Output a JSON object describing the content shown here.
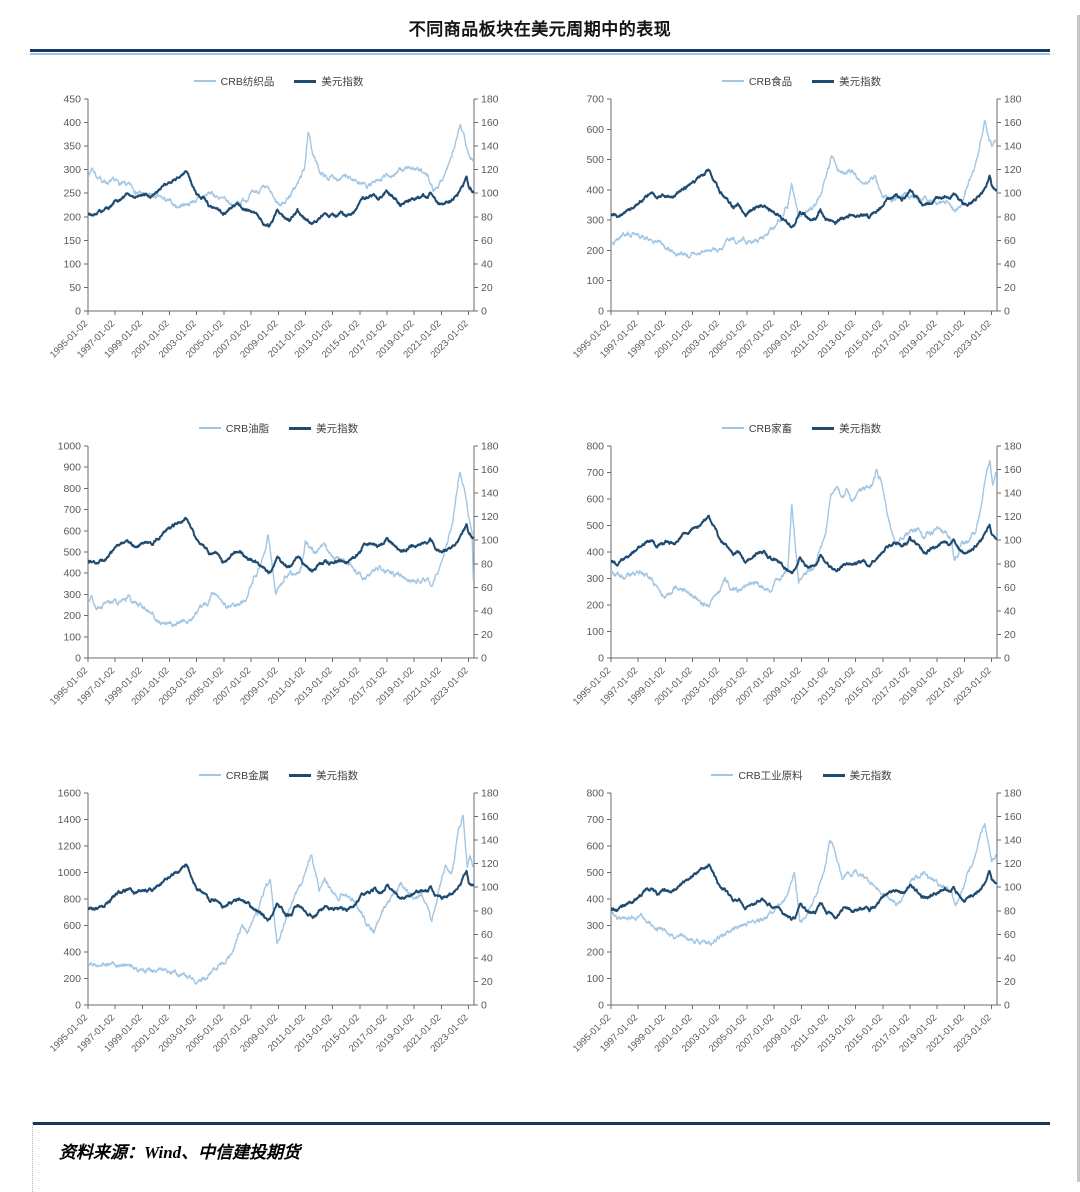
{
  "page": {
    "title": "不同商品板块在美元周期中的表现",
    "source_label": "资料来源：Wind、中信建投期货"
  },
  "colors": {
    "series_light": "#a3c6e3",
    "series_dark": "#1f4b71",
    "rule_dark": "#17365d",
    "rule_light": "#9dc3e6",
    "axis": "#6b6b6b",
    "tick_label": "#595959"
  },
  "x_axis": {
    "min": 1995,
    "max": 2023.4,
    "tick_years": [
      1995,
      1997,
      1999,
      2001,
      2003,
      2005,
      2007,
      2009,
      2011,
      2013,
      2015,
      2017,
      2019,
      2021,
      2023
    ],
    "labels": [
      "1995-01-02",
      "1997-01-02",
      "1999-01-02",
      "2001-01-02",
      "2003-01-02",
      "2005-01-02",
      "2007-01-02",
      "2009-01-02",
      "2011-01-02",
      "2013-01-02",
      "2015-01-02",
      "2017-01-02",
      "2019-01-02",
      "2021-01-02",
      "2023-01-02"
    ]
  },
  "right_axis": {
    "min": 0,
    "max": 180,
    "step": 20
  },
  "usd_index": {
    "name": "美元指数",
    "x": [
      1995,
      1995.5,
      1996,
      1996.5,
      1997,
      1997.5,
      1998,
      1998.4,
      1998.8,
      1999.2,
      1999.7,
      2000,
      2000.5,
      2001,
      2001.5,
      2001.9,
      2002.2,
      2002.7,
      2003,
      2003.5,
      2004,
      2004.4,
      2004.9,
      2005.2,
      2005.8,
      2006.2,
      2006.6,
      2007,
      2007.5,
      2008,
      2008.3,
      2008.6,
      2008.9,
      2009.2,
      2009.6,
      2010,
      2010.4,
      2010.8,
      2011.2,
      2011.5,
      2012,
      2012.4,
      2012.8,
      2013.2,
      2013.6,
      2014,
      2014.5,
      2014.8,
      2015.2,
      2015.6,
      2016,
      2016.4,
      2016.8,
      2017,
      2017.5,
      2018,
      2018.4,
      2018.8,
      2019.2,
      2019.6,
      2020,
      2020.2,
      2020.6,
      2021,
      2021.4,
      2021.8,
      2022.2,
      2022.6,
      2022.85,
      2023,
      2023.3
    ],
    "y": [
      82,
      81,
      84,
      87,
      93,
      97,
      99,
      95,
      97,
      98,
      97,
      101,
      106,
      110,
      114,
      116,
      120,
      108,
      100,
      96,
      88,
      90,
      82,
      84,
      89,
      90,
      86,
      84,
      80,
      74,
      72,
      76,
      86,
      82,
      77,
      78,
      86,
      80,
      77,
      74,
      79,
      82,
      80,
      81,
      83,
      80,
      84,
      88,
      94,
      96,
      98,
      95,
      98,
      101,
      96,
      90,
      92,
      95,
      96,
      98,
      97,
      100,
      93,
      90,
      92,
      95,
      99,
      107,
      114,
      106,
      102
    ]
  },
  "chart_data": [
    {
      "type": "line",
      "id": "crb-textiles",
      "legend_position": "top",
      "left_axis": {
        "min": 0,
        "max": 450,
        "step": 50
      },
      "right_axis": {
        "min": 0,
        "max": 180,
        "step": 20
      },
      "series": [
        {
          "name": "CRB纺织品",
          "axis": "left",
          "wiggle": 6,
          "x": [
            1995,
            1995.3,
            1995.8,
            1996.3,
            1997,
            1997.6,
            1998.2,
            1999,
            1999.6,
            2000.2,
            2001,
            2001.5,
            2002,
            2002.6,
            2003.2,
            2004,
            2004.6,
            2005.2,
            2005.8,
            2006.4,
            2007,
            2007.6,
            2008.2,
            2008.8,
            2009.2,
            2009.8,
            2010.4,
            2010.9,
            2011.2,
            2011.5,
            2012,
            2012.6,
            2013.2,
            2014,
            2014.8,
            2015.5,
            2016.2,
            2017,
            2017.6,
            2018.2,
            2018.8,
            2019.4,
            2020,
            2020.4,
            2021,
            2021.6,
            2022,
            2022.4,
            2022.7,
            2023,
            2023.3
          ],
          "y": [
            285,
            305,
            280,
            275,
            272,
            268,
            262,
            248,
            242,
            240,
            230,
            222,
            226,
            232,
            238,
            250,
            242,
            230,
            226,
            236,
            246,
            256,
            258,
            232,
            226,
            244,
            268,
            300,
            375,
            340,
            298,
            282,
            286,
            282,
            276,
            268,
            270,
            286,
            292,
            300,
            306,
            296,
            284,
            256,
            278,
            315,
            350,
            390,
            372,
            340,
            318
          ]
        },
        {
          "name": "美元指数",
          "axis": "right",
          "ref": "usd_index",
          "wiggle": 1.6
        }
      ]
    },
    {
      "type": "line",
      "id": "crb-foodstuffs",
      "legend_position": "top",
      "left_axis": {
        "min": 0,
        "max": 700,
        "step": 100
      },
      "right_axis": {
        "min": 0,
        "max": 180,
        "step": 20
      },
      "series": [
        {
          "name": "CRB食品",
          "axis": "left",
          "wiggle": 9,
          "x": [
            1995,
            1995.5,
            1996,
            1996.5,
            1997.2,
            1998,
            1998.6,
            1999.2,
            2000,
            2000.6,
            2001.2,
            2002,
            2002.6,
            2003.2,
            2004,
            2004.5,
            2005,
            2005.6,
            2006.2,
            2007,
            2007.6,
            2008,
            2008.3,
            2008.8,
            2009.3,
            2010,
            2010.5,
            2011,
            2011.25,
            2011.7,
            2012.2,
            2012.7,
            2013.2,
            2014,
            2014.4,
            2015,
            2015.6,
            2016.2,
            2016.7,
            2017.2,
            2018,
            2018.6,
            2019.2,
            2019.8,
            2020.3,
            2020.8,
            2021.3,
            2021.8,
            2022.2,
            2022.5,
            2022.8,
            2023,
            2023.3
          ],
          "y": [
            218,
            232,
            252,
            258,
            248,
            238,
            222,
            205,
            192,
            183,
            186,
            196,
            206,
            216,
            240,
            232,
            226,
            232,
            242,
            282,
            315,
            350,
            420,
            312,
            335,
            352,
            400,
            478,
            510,
            468,
            452,
            462,
            432,
            420,
            445,
            378,
            366,
            372,
            388,
            372,
            376,
            362,
            352,
            357,
            332,
            350,
            425,
            480,
            560,
            622,
            572,
            548,
            568
          ]
        },
        {
          "name": "美元指数",
          "axis": "right",
          "ref": "usd_index",
          "wiggle": 1.6
        }
      ]
    },
    {
      "type": "line",
      "id": "crb-fats-oils",
      "legend_position": "top",
      "left_axis": {
        "min": 0,
        "max": 1000,
        "step": 100
      },
      "right_axis": {
        "min": 0,
        "max": 180,
        "step": 20
      },
      "series": [
        {
          "name": "CRB油脂",
          "axis": "left",
          "wiggle": 14,
          "x": [
            1995,
            1995.2,
            1995.6,
            1996.2,
            1996.8,
            1997.4,
            1998,
            1998.4,
            1999,
            1999.6,
            2000.2,
            2000.8,
            2001.4,
            2002,
            2002.6,
            2003.2,
            2003.8,
            2004.1,
            2004.6,
            2005.2,
            2005.8,
            2006.4,
            2007,
            2007.6,
            2008,
            2008.25,
            2008.8,
            2009.2,
            2009.7,
            2010.2,
            2010.7,
            2011,
            2011.4,
            2012,
            2012.4,
            2013,
            2013.6,
            2014.2,
            2014.8,
            2015.4,
            2016,
            2016.5,
            2017,
            2017.6,
            2018.2,
            2018.8,
            2019.4,
            2020,
            2020.35,
            2020.8,
            2021.3,
            2021.8,
            2022.1,
            2022.35,
            2022.7,
            2023,
            2023.25,
            2023.35
          ],
          "y": [
            255,
            295,
            235,
            258,
            275,
            262,
            280,
            262,
            232,
            202,
            183,
            166,
            158,
            172,
            190,
            232,
            258,
            295,
            278,
            242,
            252,
            262,
            338,
            425,
            490,
            580,
            302,
            352,
            398,
            388,
            425,
            555,
            518,
            502,
            538,
            478,
            462,
            448,
            408,
            378,
            420,
            432,
            410,
            392,
            385,
            368,
            355,
            385,
            358,
            425,
            520,
            625,
            760,
            865,
            790,
            645,
            600,
            360
          ]
        },
        {
          "name": "美元指数",
          "axis": "right",
          "ref": "usd_index",
          "wiggle": 1.6
        }
      ]
    },
    {
      "type": "line",
      "id": "crb-livestock",
      "legend_position": "top",
      "left_axis": {
        "min": 0,
        "max": 800,
        "step": 100
      },
      "right_axis": {
        "min": 0,
        "max": 180,
        "step": 20
      },
      "series": [
        {
          "name": "CRB家畜",
          "axis": "left",
          "wiggle": 12,
          "x": [
            1995,
            1995.5,
            1996,
            1996.6,
            1997.2,
            1997.8,
            1998.4,
            1999,
            1999.5,
            2000,
            2000.5,
            2001,
            2001.6,
            2002.2,
            2002.5,
            2003,
            2003.4,
            2004,
            2004.5,
            2005,
            2005.6,
            2006.2,
            2006.8,
            2007.4,
            2008,
            2008.3,
            2008.8,
            2009.3,
            2009.8,
            2010.3,
            2010.8,
            2011.2,
            2011.5,
            2012,
            2012.4,
            2012.8,
            2013.3,
            2013.8,
            2014.2,
            2014.5,
            2014.9,
            2015.4,
            2016,
            2016.5,
            2017,
            2017.5,
            2018,
            2018.5,
            2019,
            2019.5,
            2020,
            2020.3,
            2020.8,
            2021.3,
            2021.8,
            2022.2,
            2022.6,
            2022.9,
            2023.1,
            2023.3
          ],
          "y": [
            330,
            312,
            300,
            318,
            322,
            308,
            272,
            238,
            248,
            262,
            250,
            232,
            215,
            198,
            230,
            242,
            298,
            262,
            252,
            282,
            292,
            278,
            272,
            302,
            330,
            590,
            292,
            315,
            335,
            395,
            480,
            630,
            650,
            600,
            645,
            598,
            628,
            645,
            662,
            700,
            665,
            520,
            432,
            452,
            472,
            492,
            462,
            472,
            492,
            468,
            448,
            368,
            432,
            452,
            475,
            560,
            700,
            738,
            645,
            692
          ]
        },
        {
          "name": "美元指数",
          "axis": "right",
          "ref": "usd_index",
          "wiggle": 1.6
        }
      ]
    },
    {
      "type": "line",
      "id": "crb-metals",
      "legend_position": "top",
      "left_axis": {
        "min": 0,
        "max": 1600,
        "step": 200
      },
      "right_axis": {
        "min": 0,
        "max": 180,
        "step": 20
      },
      "series": [
        {
          "name": "CRB金属",
          "axis": "left",
          "wiggle": 22,
          "x": [
            1995,
            1995.6,
            1996.2,
            1996.8,
            1997.4,
            1998,
            1998.6,
            1999.2,
            1999.8,
            2000.4,
            2001,
            2001.6,
            2002.2,
            2002.8,
            2003.2,
            2003.7,
            2004.2,
            2004.7,
            2005.2,
            2005.7,
            2006,
            2006.3,
            2006.7,
            2007.1,
            2007.5,
            2008,
            2008.4,
            2008.9,
            2009.3,
            2009.8,
            2010.3,
            2010.8,
            2011.2,
            2011.45,
            2012,
            2012.5,
            2013,
            2013.5,
            2014,
            2014.5,
            2015,
            2015.6,
            2016,
            2016.4,
            2017,
            2017.5,
            2018,
            2018.4,
            2019,
            2019.5,
            2020,
            2020.3,
            2020.8,
            2021.3,
            2021.7,
            2022,
            2022.3,
            2022.6,
            2022.9,
            2023.1,
            2023.3
          ],
          "y": [
            310,
            298,
            305,
            312,
            318,
            285,
            268,
            262,
            272,
            268,
            252,
            232,
            212,
            195,
            182,
            205,
            252,
            298,
            330,
            420,
            520,
            600,
            560,
            650,
            700,
            880,
            960,
            480,
            560,
            720,
            820,
            950,
            1080,
            1140,
            880,
            940,
            860,
            820,
            840,
            800,
            720,
            600,
            560,
            640,
            780,
            850,
            900,
            850,
            820,
            840,
            720,
            640,
            850,
            1050,
            980,
            1150,
            1320,
            1430,
            1020,
            1120,
            1060
          ]
        },
        {
          "name": "美元指数",
          "axis": "right",
          "ref": "usd_index",
          "wiggle": 1.6
        }
      ]
    },
    {
      "type": "line",
      "id": "crb-raw-industrials",
      "legend_position": "top",
      "left_axis": {
        "min": 0,
        "max": 800,
        "step": 100
      },
      "right_axis": {
        "min": 0,
        "max": 180,
        "step": 20
      },
      "series": [
        {
          "name": "CRB工业原料",
          "axis": "left",
          "wiggle": 10,
          "x": [
            1995,
            1995.5,
            1996,
            1996.6,
            1997.2,
            1997.8,
            1998.4,
            1999,
            1999.6,
            2000.2,
            2000.8,
            2001.4,
            2002,
            2002.5,
            2003,
            2003.6,
            2004.2,
            2004.8,
            2005.4,
            2006,
            2006.6,
            2007.2,
            2007.8,
            2008.2,
            2008.5,
            2008.9,
            2009.3,
            2009.8,
            2010.3,
            2010.8,
            2011.1,
            2011.4,
            2012,
            2012.5,
            2013,
            2013.5,
            2014,
            2014.5,
            2015,
            2015.5,
            2016,
            2016.4,
            2017,
            2017.5,
            2018,
            2018.5,
            2019,
            2019.5,
            2020,
            2020.35,
            2020.8,
            2021.3,
            2021.8,
            2022.2,
            2022.5,
            2022.8,
            2023,
            2023.3
          ],
          "y": [
            345,
            335,
            330,
            338,
            330,
            318,
            295,
            272,
            262,
            258,
            248,
            238,
            230,
            242,
            258,
            278,
            295,
            302,
            308,
            322,
            342,
            368,
            405,
            455,
            490,
            318,
            335,
            382,
            448,
            540,
            630,
            590,
            480,
            500,
            505,
            480,
            462,
            440,
            420,
            405,
            385,
            400,
            465,
            480,
            500,
            470,
            462,
            448,
            438,
            372,
            425,
            500,
            560,
            640,
            678,
            600,
            545,
            565
          ]
        },
        {
          "name": "美元指数",
          "axis": "right",
          "ref": "usd_index",
          "wiggle": 1.6
        }
      ]
    }
  ]
}
